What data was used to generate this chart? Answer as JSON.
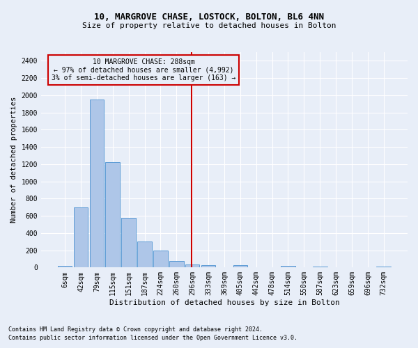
{
  "title1": "10, MARGROVE CHASE, LOSTOCK, BOLTON, BL6 4NN",
  "title2": "Size of property relative to detached houses in Bolton",
  "xlabel": "Distribution of detached houses by size in Bolton",
  "ylabel": "Number of detached properties",
  "annotation_title": "10 MARGROVE CHASE: 288sqm",
  "annotation_line1": "← 97% of detached houses are smaller (4,992)",
  "annotation_line2": "3% of semi-detached houses are larger (163) →",
  "footnote1": "Contains HM Land Registry data © Crown copyright and database right 2024.",
  "footnote2": "Contains public sector information licensed under the Open Government Licence v3.0.",
  "bar_labels": [
    "6sqm",
    "42sqm",
    "79sqm",
    "115sqm",
    "151sqm",
    "187sqm",
    "224sqm",
    "260sqm",
    "296sqm",
    "333sqm",
    "369sqm",
    "405sqm",
    "442sqm",
    "478sqm",
    "514sqm",
    "550sqm",
    "587sqm",
    "623sqm",
    "659sqm",
    "696sqm",
    "732sqm"
  ],
  "bar_values": [
    15,
    700,
    1950,
    1225,
    575,
    305,
    200,
    75,
    35,
    30,
    0,
    30,
    0,
    0,
    20,
    0,
    10,
    0,
    0,
    0,
    10
  ],
  "property_bin_index": 8,
  "bar_color": "#aec6e8",
  "bar_edge_color": "#5b9bd5",
  "vline_color": "#cc0000",
  "annotation_box_color": "#cc0000",
  "background_color": "#e8eef8",
  "grid_color": "#ffffff",
  "ylim": [
    0,
    2500
  ],
  "yticks": [
    0,
    200,
    400,
    600,
    800,
    1000,
    1200,
    1400,
    1600,
    1800,
    2000,
    2200,
    2400
  ],
  "title1_fontsize": 9,
  "title2_fontsize": 8,
  "xlabel_fontsize": 8,
  "ylabel_fontsize": 7.5,
  "tick_fontsize": 7,
  "annot_fontsize": 7,
  "footnote_fontsize": 6
}
